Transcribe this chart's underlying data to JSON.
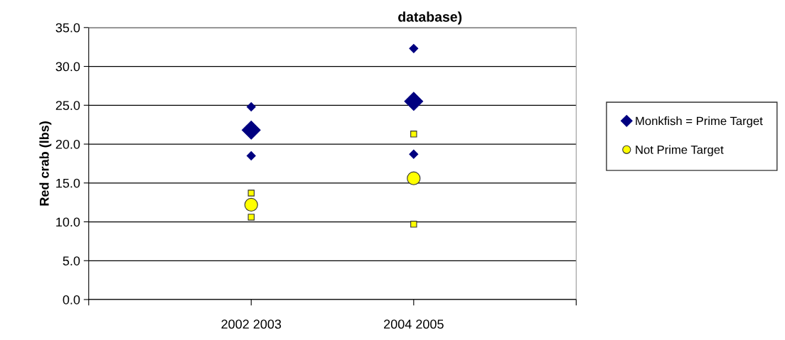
{
  "chart_data": {
    "type": "scatter",
    "title": "database)",
    "ylabel": "Red crab (lbs)",
    "categories": [
      null,
      "2002 2003",
      "2004 2005",
      null
    ],
    "series": [
      {
        "name": "Monkfish = Prime Target",
        "color": "#000080",
        "marker": "diamond",
        "values": [
          null,
          21.8,
          25.5,
          null
        ]
      },
      {
        "color": "#000080",
        "marker": "diamond",
        "values": [
          null,
          24.8,
          32.3,
          null
        ]
      },
      {
        "color": "#000080",
        "marker": "diamond",
        "values": [
          null,
          18.5,
          18.7,
          null
        ]
      },
      {
        "name": "Not Prime Target",
        "color": "#ffff00",
        "marker": "circle",
        "values": [
          null,
          12.2,
          15.6,
          null
        ]
      },
      {
        "color": "#ffff00",
        "marker": "square",
        "values": [
          null,
          13.7,
          21.3,
          null
        ]
      },
      {
        "color": "#ffff00",
        "marker": "square",
        "values": [
          null,
          10.6,
          9.7,
          null
        ]
      }
    ],
    "ylim": [
      0,
      35
    ],
    "yticks": [
      {
        "value": 0,
        "label": "0.0"
      },
      {
        "value": 5,
        "label": "5.0"
      },
      {
        "value": 10,
        "label": "10.0"
      },
      {
        "value": 15,
        "label": "15.0"
      },
      {
        "value": 20,
        "label": "20.0"
      },
      {
        "value": 25,
        "label": "25.0"
      },
      {
        "value": 30,
        "label": "30.0"
      },
      {
        "value": 35,
        "label": "35.0"
      }
    ],
    "grid": "y",
    "legend": "right"
  }
}
